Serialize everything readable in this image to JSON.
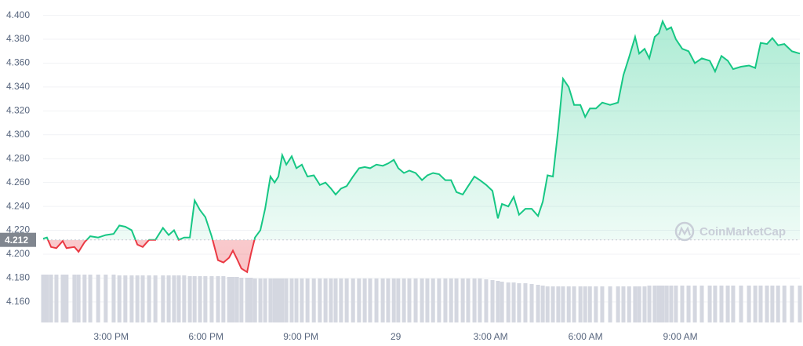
{
  "chart_data": {
    "type": "line",
    "series": [
      {
        "name": "Price",
        "color": "#16c784",
        "down_color": "#ea3943",
        "x": [
          12.85,
          12.97,
          13.1,
          13.27,
          13.47,
          13.59,
          13.84,
          13.97,
          14.16,
          14.34,
          14.59,
          14.83,
          15.08,
          15.26,
          15.45,
          15.65,
          15.83,
          16.0,
          16.2,
          16.4,
          16.64,
          16.82,
          16.99,
          17.14,
          17.31,
          17.49,
          17.64,
          17.81,
          17.98,
          18.18,
          18.38,
          18.55,
          18.73,
          18.85,
          18.98,
          19.12,
          19.3,
          19.42,
          19.55,
          19.72,
          19.87,
          20.04,
          20.17,
          20.29,
          20.41,
          20.54,
          20.71,
          20.86,
          21.03,
          21.21,
          21.41,
          21.6,
          21.78,
          21.95,
          22.1,
          22.27,
          22.45,
          22.65,
          22.84,
          23.02,
          23.19,
          23.39,
          23.59,
          23.76,
          23.94,
          24.08,
          24.26,
          24.43,
          24.63,
          24.83,
          25.0,
          25.18,
          25.37,
          25.57,
          25.75,
          25.92,
          26.12,
          26.29,
          26.49,
          26.66,
          26.86,
          27.06,
          27.23,
          27.36,
          27.56,
          27.73,
          27.9,
          28.1,
          28.3,
          28.5,
          28.65,
          28.8,
          28.97,
          29.14,
          29.29,
          29.47,
          29.64,
          29.84,
          29.99,
          30.14,
          30.33,
          30.53,
          30.78,
          31.03,
          31.2,
          31.38,
          31.57,
          31.7,
          31.87,
          32.02,
          32.19,
          32.32,
          32.44,
          32.57,
          32.71,
          32.86,
          33.06,
          33.26,
          33.46,
          33.68,
          33.93,
          34.1,
          34.3,
          34.5,
          34.67,
          34.92,
          35.17,
          35.37,
          35.54,
          35.74,
          35.91,
          36.09,
          36.29,
          36.53,
          36.78
        ],
        "values": [
          4.213,
          4.214,
          4.206,
          4.205,
          4.211,
          4.205,
          4.206,
          4.202,
          4.21,
          4.215,
          4.214,
          4.216,
          4.217,
          4.224,
          4.223,
          4.22,
          4.208,
          4.206,
          4.212,
          4.212,
          4.222,
          4.216,
          4.22,
          4.212,
          4.214,
          4.214,
          4.245,
          4.237,
          4.231,
          4.215,
          4.195,
          4.193,
          4.197,
          4.203,
          4.196,
          4.188,
          4.185,
          4.2,
          4.214,
          4.22,
          4.238,
          4.265,
          4.26,
          4.265,
          4.283,
          4.275,
          4.282,
          4.272,
          4.275,
          4.265,
          4.266,
          4.258,
          4.26,
          4.255,
          4.25,
          4.255,
          4.257,
          4.265,
          4.272,
          4.273,
          4.272,
          4.275,
          4.274,
          4.276,
          4.279,
          4.272,
          4.268,
          4.27,
          4.268,
          4.262,
          4.266,
          4.268,
          4.267,
          4.262,
          4.262,
          4.252,
          4.25,
          4.257,
          4.265,
          4.262,
          4.258,
          4.253,
          4.23,
          4.242,
          4.24,
          4.248,
          4.233,
          4.238,
          4.238,
          4.232,
          4.244,
          4.266,
          4.265,
          4.305,
          4.347,
          4.34,
          4.325,
          4.325,
          4.315,
          4.322,
          4.322,
          4.327,
          4.325,
          4.327,
          4.35,
          4.365,
          4.382,
          4.368,
          4.372,
          4.364,
          4.382,
          4.385,
          4.395,
          4.388,
          4.39,
          4.38,
          4.372,
          4.37,
          4.36,
          4.364,
          4.362,
          4.353,
          4.366,
          4.362,
          4.355,
          4.357,
          4.358,
          4.356,
          4.377,
          4.376,
          4.381,
          4.375,
          4.376,
          4.37,
          4.368
        ],
        "volume": [
          61,
          61,
          61,
          61,
          61,
          61,
          61,
          61,
          61,
          61,
          61,
          61,
          61,
          60,
          60,
          60,
          60,
          60,
          60,
          60,
          60,
          60,
          60,
          60,
          60,
          59,
          59,
          59,
          59,
          59,
          59,
          59,
          58,
          58,
          58,
          57,
          57,
          57,
          56,
          56,
          56,
          56,
          56,
          56,
          56,
          56,
          56,
          56,
          56,
          56,
          56,
          56,
          56,
          56,
          56,
          56,
          56,
          56,
          56,
          56,
          56,
          56,
          56,
          56,
          56,
          56,
          56,
          56,
          56,
          56,
          56,
          56,
          56,
          56,
          56,
          56,
          56,
          56,
          56,
          56,
          55,
          54,
          53,
          52,
          51,
          51,
          50,
          50,
          49,
          48,
          47,
          46,
          46,
          46,
          46,
          46,
          46,
          46,
          46,
          46,
          46,
          46,
          46,
          46,
          46,
          46,
          46,
          46,
          46,
          47,
          47,
          47,
          47,
          47,
          47,
          47,
          47,
          47,
          47,
          47,
          47,
          47,
          47,
          47,
          47,
          47,
          47,
          47,
          47,
          47,
          47,
          47,
          47,
          47,
          47
        ]
      }
    ],
    "baseline": 4.212,
    "xlim": [
      12.85,
      36.78
    ],
    "xticks": [
      {
        "value": 15,
        "label": "3:00 PM"
      },
      {
        "value": 18,
        "label": "6:00 PM"
      },
      {
        "value": 21,
        "label": "9:00 PM"
      },
      {
        "value": 24,
        "label": "29"
      },
      {
        "value": 27,
        "label": "3:00 AM"
      },
      {
        "value": 30,
        "label": "6:00 AM"
      },
      {
        "value": 33,
        "label": "9:00 AM"
      }
    ],
    "ylim": [
      4.152,
      4.405
    ],
    "yticks": [
      {
        "value": 4.16,
        "label": "4.160"
      },
      {
        "value": 4.18,
        "label": "4.180"
      },
      {
        "value": 4.2,
        "label": "4.200"
      },
      {
        "value": 4.22,
        "label": "4.220"
      },
      {
        "value": 4.24,
        "label": "4.240"
      },
      {
        "value": 4.26,
        "label": "4.260"
      },
      {
        "value": 4.28,
        "label": "4.280"
      },
      {
        "value": 4.3,
        "label": "4.300"
      },
      {
        "value": 4.32,
        "label": "4.320"
      },
      {
        "value": 4.34,
        "label": "4.340"
      },
      {
        "value": 4.36,
        "label": "4.360"
      },
      {
        "value": 4.38,
        "label": "4.380"
      },
      {
        "value": 4.4,
        "label": "4.400"
      }
    ],
    "grid": true,
    "watermark": "CoinMarketCap"
  }
}
